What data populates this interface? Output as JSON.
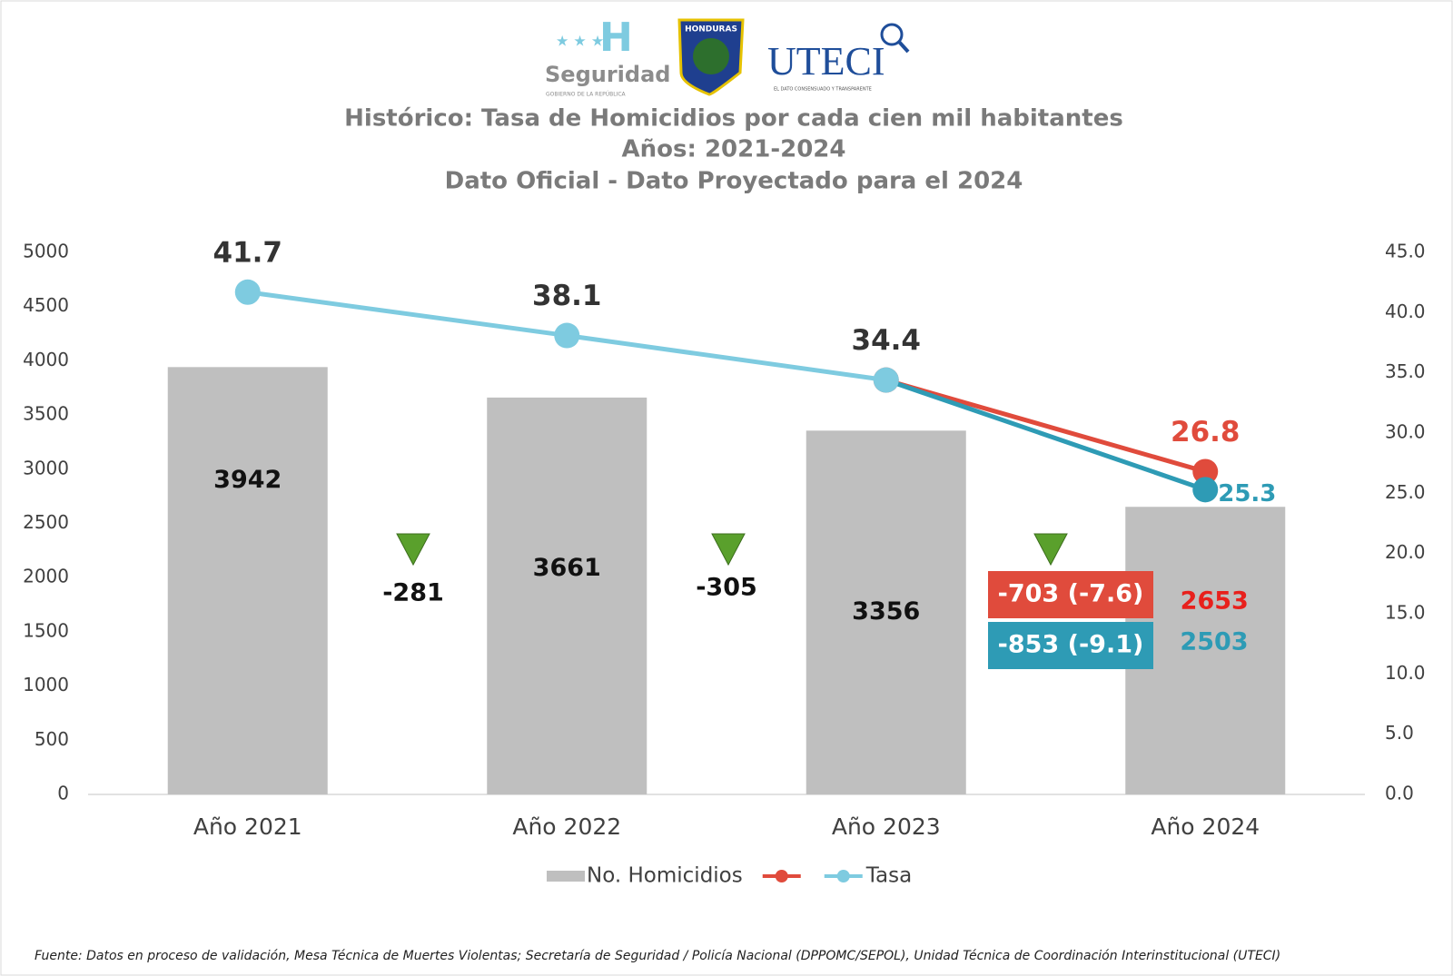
{
  "header": {
    "logo_left": "Seguridad",
    "logo_left_sub": "GOBIERNO DE LA REPÚBLICA",
    "logo_mid": "HONDURAS",
    "logo_right": "UTECI",
    "logo_right_sub": "EL DATO CONSENSUADO Y TRANSPARENTE"
  },
  "chart_data": {
    "type": "bar-line",
    "title": [
      "Histórico: Tasa de Homicidios por cada cien mil habitantes",
      "Años: 2021-2024",
      "Dato Oficial - Dato Proyectado para el 2024"
    ],
    "categories": [
      "Año 2021",
      "Año 2022",
      "Año 2023",
      "Año 2024"
    ],
    "series": [
      {
        "name": "No. Homicidios",
        "type": "bar",
        "color": "#bfbfbf",
        "values": [
          3942,
          3661,
          3356,
          2653
        ],
        "label_colors": [
          "#111111",
          "#111111",
          "#111111",
          "#e8201c"
        ]
      },
      {
        "type": "line",
        "axis": "y2",
        "color": "#e04b3c",
        "values": [
          null,
          null,
          34.4,
          26.8
        ],
        "label_color": "#e04b3c"
      },
      {
        "name": "Tasa",
        "type": "line",
        "axis": "y2",
        "color": "#7ecbe0",
        "point_colors": [
          "#7ecbe0",
          "#7ecbe0",
          "#7ecbe0",
          "#2e9bb5"
        ],
        "values": [
          41.7,
          38.1,
          34.4,
          25.3
        ],
        "label_colors": [
          "#333333",
          "#333333",
          "#333333",
          "#2e9bb5"
        ]
      }
    ],
    "annotations": [
      {
        "text": "-281",
        "color": "#111111"
      },
      {
        "text": "-305",
        "color": "#111111"
      },
      {
        "text": "-703 (-7.6)",
        "color": "#ffffff",
        "background": "#e04b3c"
      },
      {
        "text": "-853 (-9.1)",
        "color": "#ffffff",
        "background": "#2e9bb5"
      },
      {
        "text": "2503",
        "color": "#2e9bb5"
      }
    ],
    "ylim": [
      0,
      5000
    ],
    "yticks": [
      0,
      500,
      1000,
      1500,
      2000,
      2500,
      3000,
      3500,
      4000,
      4500,
      5000
    ],
    "y2lim": [
      0,
      45
    ],
    "y2ticks": [
      {
        "value": 0,
        "label": "0.0"
      },
      {
        "value": 5,
        "label": "5.0"
      },
      {
        "value": 10,
        "label": "10.0"
      },
      {
        "value": 15,
        "label": "15.0"
      },
      {
        "value": 20,
        "label": "20.0"
      },
      {
        "value": 25,
        "label": "25.0"
      },
      {
        "value": 30,
        "label": "30.0"
      },
      {
        "value": 35,
        "label": "35.0"
      },
      {
        "value": 40,
        "label": "40.0"
      },
      {
        "value": 45,
        "label": "45.0"
      }
    ],
    "legend": "bottom",
    "source": "Fuente: Datos en proceso de validación, Mesa Técnica de Muertes Violentas; Secretaría de Seguridad / Policía Nacional (DPPOMC/SEPOL), Unidad Técnica de Coordinación Interinstitucional (UTECI)"
  }
}
